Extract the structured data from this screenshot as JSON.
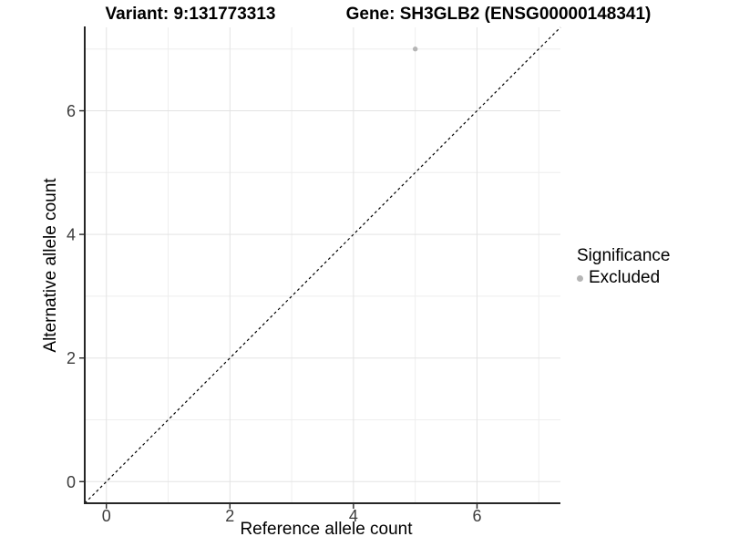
{
  "chart_data": {
    "type": "scatter",
    "titles": {
      "variant": "Variant: 9:131773313",
      "gene": "Gene: SH3GLB2 (ENSG00000148341)"
    },
    "xlabel": "Reference allele count",
    "ylabel": "Alternative allele count",
    "xlim": [
      -0.35,
      7.35
    ],
    "ylim": [
      -0.35,
      7.35
    ],
    "x_ticks": [
      0,
      2,
      4,
      6
    ],
    "y_ticks": [
      0,
      2,
      4,
      6
    ],
    "x_minor_grid": [
      1,
      3,
      5,
      7
    ],
    "y_minor_grid": [
      1,
      3,
      5,
      7
    ],
    "grid": "on",
    "points": [
      {
        "x": 5,
        "y": 7,
        "series": "Excluded"
      }
    ],
    "reference_line": {
      "kind": "identity",
      "equation": "y = x",
      "style": "dashed"
    },
    "legend": {
      "title": "Significance",
      "position": "right",
      "items": [
        {
          "label": "Excluded",
          "color": "#b5b5b5"
        }
      ]
    },
    "colors": {
      "point_excluded": "#b5b5b5",
      "grid_major": "#e3e3e3",
      "grid_minor": "#eeeeee",
      "axis_line": "#262626",
      "tick_label": "#3c3c3c",
      "title_text": "#000000",
      "reference_line": "#000000",
      "background": "#ffffff"
    }
  }
}
